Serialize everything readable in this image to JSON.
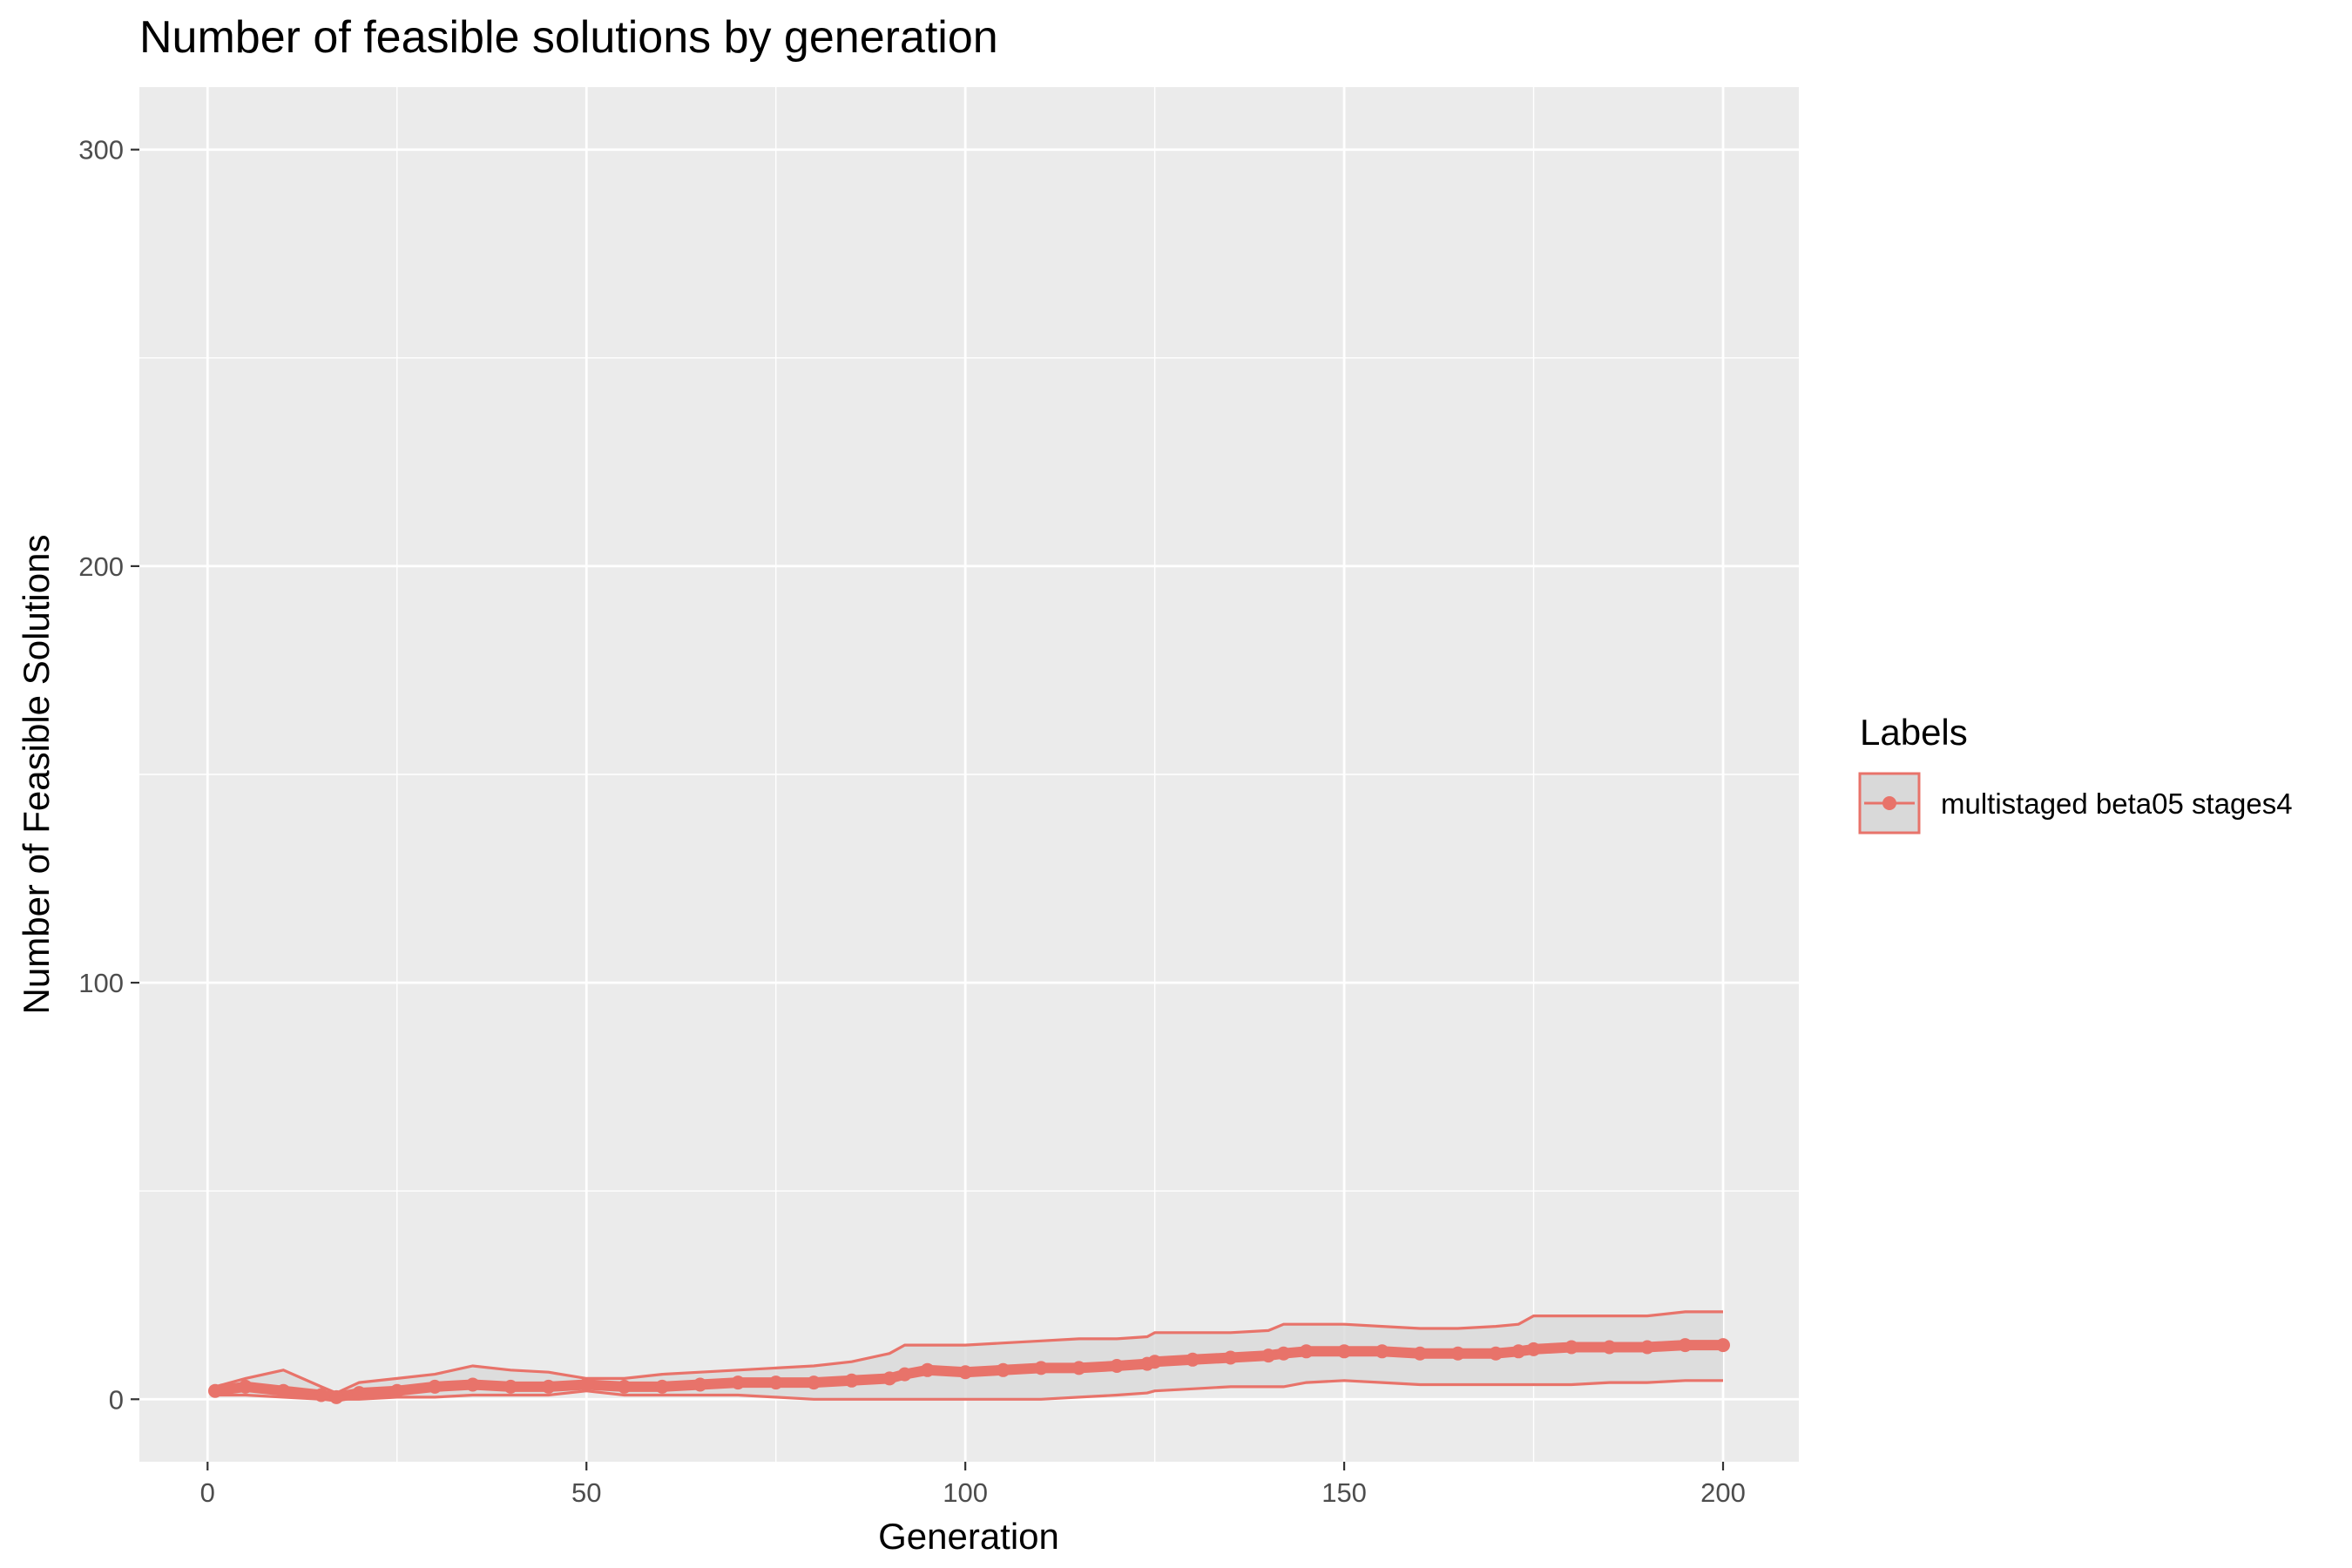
{
  "chart_data": {
    "type": "line",
    "title": "Number of feasible solutions by generation",
    "xlabel": "Generation",
    "ylabel": "Number of Feasible Solutions",
    "xlim": [
      -9,
      210
    ],
    "ylim": [
      -15,
      315
    ],
    "x_ticks": [
      0,
      50,
      100,
      150,
      200
    ],
    "y_ticks": [
      0,
      100,
      200,
      300
    ],
    "x_tick_labels": [
      "0",
      "50",
      "100",
      "150",
      "200"
    ],
    "y_tick_labels": [
      "0",
      "100",
      "200",
      "300"
    ],
    "grid": true,
    "legend": {
      "title": "Labels",
      "position": "right"
    },
    "series": [
      {
        "name": "multistaged beta05 stages4",
        "color": "#E8736A",
        "ribbon_fill": "#D9D9D9",
        "x": [
          1,
          5,
          10,
          15,
          17,
          20,
          25,
          30,
          35,
          40,
          45,
          50,
          55,
          60,
          65,
          70,
          75,
          80,
          85,
          90,
          92,
          95,
          100,
          105,
          110,
          115,
          120,
          124,
          125,
          130,
          135,
          140,
          142,
          145,
          150,
          155,
          160,
          165,
          170,
          173,
          175,
          180,
          185,
          190,
          195,
          200
        ],
        "mean": [
          2,
          3,
          2,
          1,
          0.5,
          1.5,
          2,
          3,
          3.5,
          3,
          3,
          3.5,
          3,
          3,
          3.5,
          4,
          4,
          4,
          4.5,
          5,
          6,
          7,
          6.5,
          7,
          7.5,
          7.5,
          8,
          8.5,
          9,
          9.5,
          10,
          10.5,
          11,
          11.5,
          11.5,
          11.5,
          11,
          11,
          11,
          11.5,
          12,
          12.5,
          12.5,
          12.5,
          13,
          13
        ],
        "upper": [
          3,
          5,
          7,
          3,
          1.5,
          4,
          5,
          6,
          8,
          7,
          6.5,
          5,
          5,
          6,
          6.5,
          7,
          7.5,
          8,
          9,
          11,
          13,
          13,
          13,
          13.5,
          14,
          14.5,
          14.5,
          15,
          16,
          16,
          16,
          16.5,
          18,
          18,
          18,
          17.5,
          17,
          17,
          17.5,
          18,
          20,
          20,
          20,
          20,
          21,
          21
        ],
        "lower": [
          1,
          1,
          0.5,
          0,
          0,
          0,
          0.5,
          0.5,
          1,
          1,
          1,
          2,
          1,
          1,
          1,
          1,
          0.5,
          0,
          0,
          0,
          0,
          0,
          0,
          0,
          0,
          0.5,
          1,
          1.5,
          2,
          2.5,
          3,
          3,
          3,
          4,
          4.5,
          4,
          3.5,
          3.5,
          3.5,
          3.5,
          3.5,
          3.5,
          4,
          4,
          4.5,
          4.5
        ]
      }
    ]
  }
}
